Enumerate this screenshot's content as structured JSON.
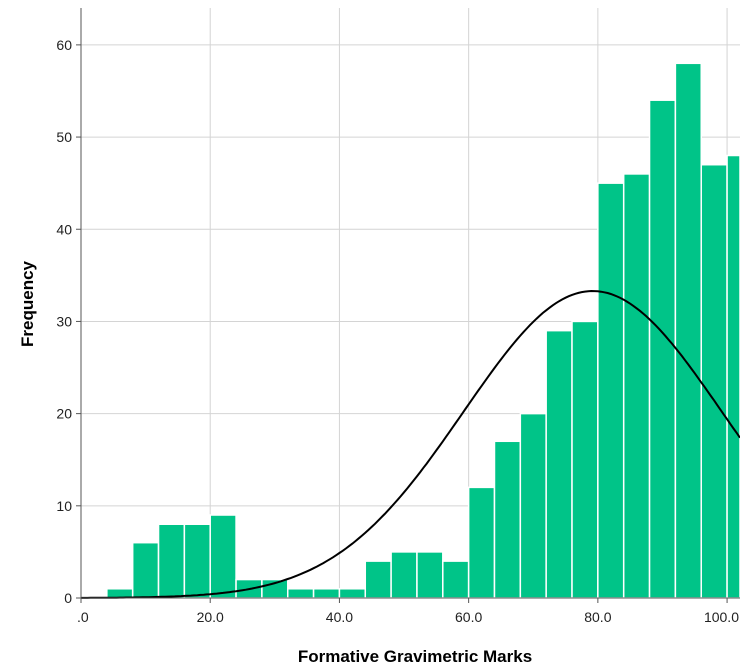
{
  "chart_data": {
    "type": "bar",
    "title": "",
    "xlabel": "Formative Gravimetric Marks",
    "ylabel": "Frequency",
    "xlim": [
      0,
      102
    ],
    "ylim": [
      0,
      64
    ],
    "grid": true,
    "bin_width": 4,
    "x_ticks": [
      {
        "value": 0,
        "label": ".0"
      },
      {
        "value": 20,
        "label": "20.0"
      },
      {
        "value": 40,
        "label": "40.0"
      },
      {
        "value": 60,
        "label": "60.0"
      },
      {
        "value": 80,
        "label": "80.0"
      },
      {
        "value": 100,
        "label": "100.0"
      }
    ],
    "y_ticks": [
      {
        "value": 0,
        "label": "0"
      },
      {
        "value": 10,
        "label": "10"
      },
      {
        "value": 20,
        "label": "20"
      },
      {
        "value": 30,
        "label": "30"
      },
      {
        "value": 40,
        "label": "40"
      },
      {
        "value": 50,
        "label": "50"
      },
      {
        "value": 60,
        "label": "60"
      }
    ],
    "bins": [
      {
        "x0": 4,
        "x1": 8,
        "value": 1
      },
      {
        "x0": 8,
        "x1": 12,
        "value": 6
      },
      {
        "x0": 12,
        "x1": 16,
        "value": 8
      },
      {
        "x0": 16,
        "x1": 20,
        "value": 8
      },
      {
        "x0": 20,
        "x1": 24,
        "value": 9
      },
      {
        "x0": 24,
        "x1": 28,
        "value": 2
      },
      {
        "x0": 28,
        "x1": 32,
        "value": 2
      },
      {
        "x0": 32,
        "x1": 36,
        "value": 1
      },
      {
        "x0": 36,
        "x1": 40,
        "value": 1
      },
      {
        "x0": 40,
        "x1": 44,
        "value": 1
      },
      {
        "x0": 44,
        "x1": 48,
        "value": 4
      },
      {
        "x0": 48,
        "x1": 52,
        "value": 5
      },
      {
        "x0": 52,
        "x1": 56,
        "value": 5
      },
      {
        "x0": 56,
        "x1": 60,
        "value": 4
      },
      {
        "x0": 60,
        "x1": 64,
        "value": 12
      },
      {
        "x0": 64,
        "x1": 68,
        "value": 17
      },
      {
        "x0": 68,
        "x1": 72,
        "value": 20
      },
      {
        "x0": 72,
        "x1": 76,
        "value": 29
      },
      {
        "x0": 76,
        "x1": 80,
        "value": 30
      },
      {
        "x0": 80,
        "x1": 84,
        "value": 45
      },
      {
        "x0": 84,
        "x1": 88,
        "value": 46
      },
      {
        "x0": 88,
        "x1": 92,
        "value": 54
      },
      {
        "x0": 92,
        "x1": 96,
        "value": 58
      },
      {
        "x0": 96,
        "x1": 100,
        "value": 47
      },
      {
        "x0": 100,
        "x1": 104,
        "value": 48
      }
    ],
    "normal_curve": {
      "mean": 79.2,
      "sd": 20.0,
      "peak": 33.3
    },
    "bar_color": "#00c488",
    "bar_edge_color": "#ffffff",
    "curve_color": "#000000",
    "grid_color": "#d4d4d4"
  }
}
